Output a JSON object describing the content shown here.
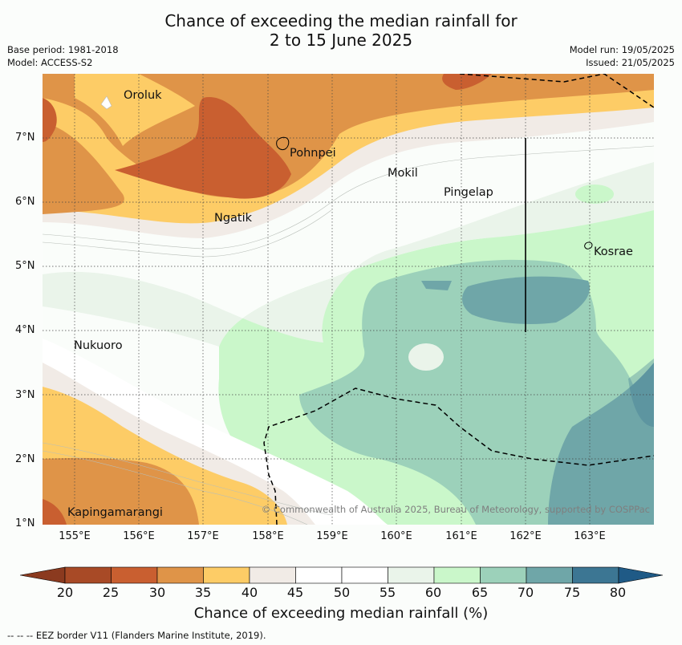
{
  "title_line1": "Chance of exceeding the median rainfall for",
  "title_line2": "2 to 15 June 2025",
  "meta_left": {
    "base_period": "Base period: 1981-2018",
    "model": "Model: ACCESS-S2"
  },
  "meta_right": {
    "model_run": "Model run: 19/05/2025",
    "issued": "Issued: 21/05/2025"
  },
  "lat_labels": [
    "7°N",
    "6°N",
    "5°N",
    "4°N",
    "3°N",
    "2°N",
    "1°N"
  ],
  "lon_labels": [
    "155°E",
    "156°E",
    "157°E",
    "158°E",
    "159°E",
    "160°E",
    "161°E",
    "162°E",
    "163°E"
  ],
  "places": {
    "oroluk": "Oroluk",
    "pohnpei": "Pohnpei",
    "mokil": "Mokil",
    "pingelap": "Pingelap",
    "ngatik": "Ngatik",
    "kosrae": "Kosrae",
    "nukuoro": "Nukuoro",
    "kapingamarangi": "Kapingamarangi"
  },
  "copyright": "© Commonwealth of Australia 2025, Bureau of Meteorology, supported by COSPPac",
  "colorbar": {
    "ticks": [
      "20",
      "25",
      "30",
      "35",
      "40",
      "45",
      "50",
      "55",
      "60",
      "65",
      "70",
      "75",
      "80"
    ],
    "colors": [
      "#a84a26",
      "#c95f30",
      "#df9448",
      "#fdcc66",
      "#f1ebe6",
      "#ffffff",
      "#ffffff",
      "#eaf4ea",
      "#caf7ca",
      "#9cd1ba",
      "#6fa6a8",
      "#3c7693"
    ],
    "under_color": "#8b3a1f",
    "over_color": "#1f5a86",
    "title": "Chance of exceeding median rainfall (%)"
  },
  "footnote": "--  --  -- EEZ border V11 (Flanders Marine Institute, 2019)."
}
